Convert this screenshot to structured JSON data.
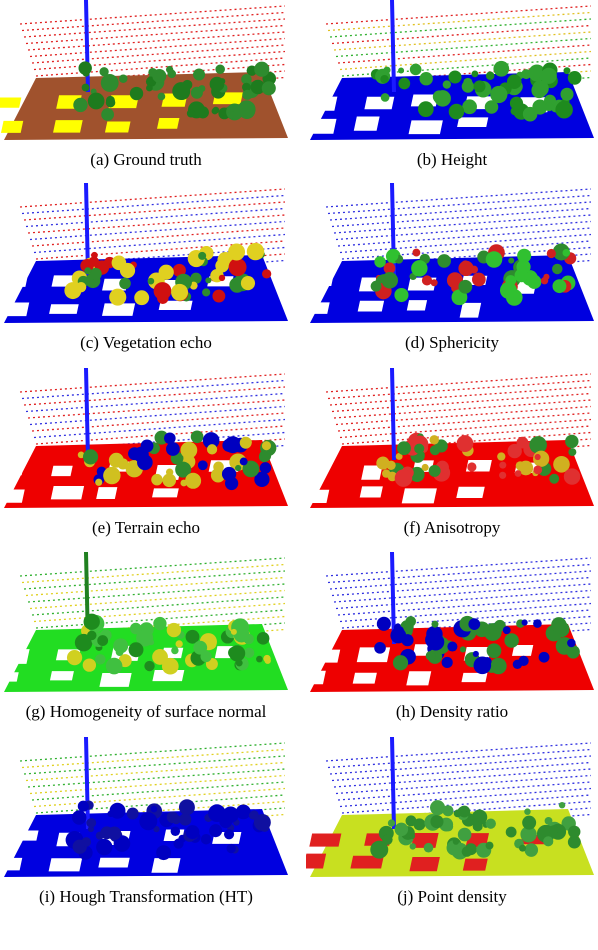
{
  "figure": {
    "panels": [
      {
        "label": "(a) Ground truth"
      },
      {
        "label": "(b) Height"
      },
      {
        "label": "(c) Vegetation echo"
      },
      {
        "label": "(d) Sphericity"
      },
      {
        "label": "(e) Terrain echo"
      },
      {
        "label": "(f) Anisotropy"
      },
      {
        "label": "(g) Homogeneity of surface normal"
      },
      {
        "label": "(h) Density ratio"
      },
      {
        "label": "(i) Hough Transformation (HT)"
      },
      {
        "label": "(j) Point density"
      }
    ]
  }
}
